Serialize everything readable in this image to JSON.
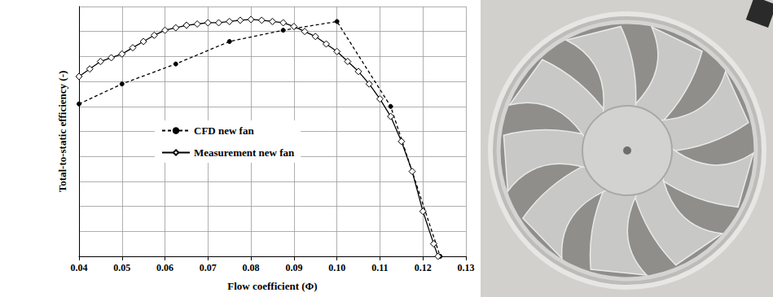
{
  "chart_data": {
    "type": "line",
    "x_label": "Flow coefficient (Φ)",
    "y_label": "Total-to-static efficiency (-)",
    "xlim": [
      0.04,
      0.13
    ],
    "xticks": [
      0.04,
      0.05,
      0.06,
      0.07,
      0.08,
      0.09,
      {
        "value": 0.1,
        "label": "0.10"
      },
      0.11,
      0.12,
      0.13
    ],
    "ylim": [
      0,
      1
    ],
    "yticks": [
      0,
      0.1,
      0.2,
      0.3,
      0.4,
      0.5,
      0.6,
      0.7,
      0.8,
      0.9,
      1
    ],
    "tick_labels": "x",
    "grid": true,
    "legend": "left",
    "series": [
      {
        "name": "CFD new fan",
        "color": "#000000",
        "marker": "circle",
        "line_style": "dashed",
        "x": [
          0.04,
          0.05,
          0.0625,
          0.075,
          0.0875,
          0.1,
          0.1125,
          0.124
        ],
        "values": [
          0.61,
          0.69,
          0.77,
          0.86,
          0.905,
          0.94,
          0.6,
          0.0
        ]
      },
      {
        "name": "Measurement new fan",
        "color": "#000000",
        "marker": "diamond-open",
        "line_style": "solid",
        "x": [
          0.04,
          0.0425,
          0.045,
          0.0475,
          0.05,
          0.0525,
          0.055,
          0.0575,
          0.06,
          0.0625,
          0.065,
          0.0675,
          0.07,
          0.0725,
          0.075,
          0.0775,
          0.08,
          0.0825,
          0.085,
          0.0875,
          0.09,
          0.0925,
          0.095,
          0.0975,
          0.1,
          0.1025,
          0.105,
          0.1075,
          0.11,
          0.1125,
          0.115,
          0.1175,
          0.12,
          0.1225,
          0.1235
        ],
        "values": [
          0.72,
          0.75,
          0.78,
          0.795,
          0.81,
          0.835,
          0.86,
          0.885,
          0.905,
          0.915,
          0.925,
          0.93,
          0.935,
          0.935,
          0.94,
          0.945,
          0.948,
          0.945,
          0.94,
          0.935,
          0.92,
          0.9,
          0.88,
          0.85,
          0.82,
          0.78,
          0.74,
          0.69,
          0.63,
          0.56,
          0.46,
          0.34,
          0.18,
          0.05,
          0.0
        ]
      }
    ]
  }
}
